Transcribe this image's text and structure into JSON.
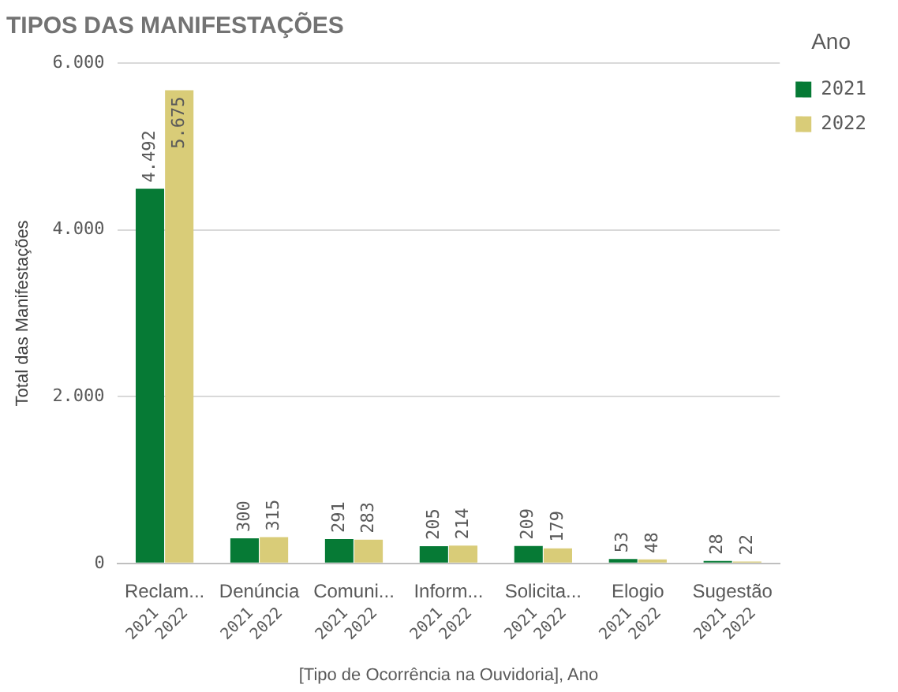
{
  "chart_data": {
    "type": "bar",
    "title": "TIPOS DAS MANIFESTAÇÕES",
    "xlabel": "[Tipo de Ocorrência na Ouvidoria], Ano",
    "ylabel": "Total das Manifestações",
    "legend_title": "Ano",
    "legend": "top right",
    "grid": "y",
    "categories": [
      "Reclam...",
      "Denúncia",
      "Comuni...",
      "Inform...",
      "Solicita...",
      "Elogio",
      "Sugestão"
    ],
    "series": [
      {
        "name": "2021",
        "color": "#067a35",
        "values": [
          4492,
          300,
          291,
          205,
          209,
          53,
          28
        ],
        "value_labels": [
          "4.492",
          "300",
          "291",
          "205",
          "209",
          "53",
          "28"
        ]
      },
      {
        "name": "2022",
        "color": "#d9cc78",
        "values": [
          5675,
          315,
          283,
          214,
          179,
          48,
          22
        ],
        "value_labels": [
          "5.675",
          "315",
          "283",
          "214",
          "179",
          "48",
          "22"
        ]
      }
    ],
    "ylim": [
      0,
      6000
    ],
    "yticks": [
      {
        "value": 0,
        "label": "0"
      },
      {
        "value": 2000,
        "label": "2.000"
      },
      {
        "value": 4000,
        "label": "4.000"
      },
      {
        "value": 6000,
        "label": "6.000"
      }
    ]
  }
}
